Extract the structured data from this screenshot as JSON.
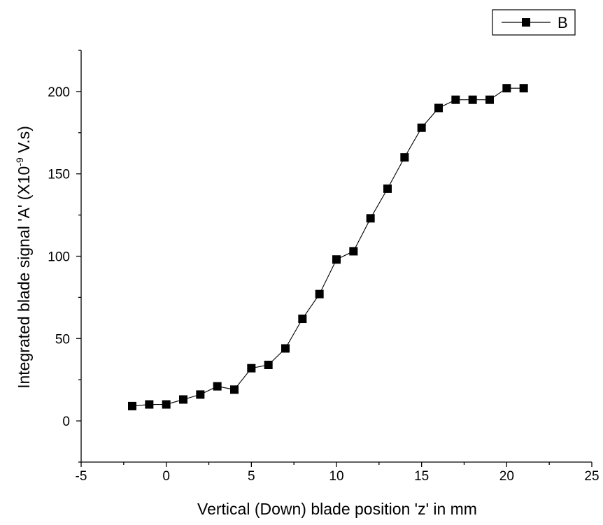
{
  "chart_data": {
    "type": "line",
    "xlabel": "Vertical (Down) blade position 'z' in mm",
    "ylabel_main": "Integrated blade signal 'A' (X10",
    "ylabel_exponent": "-9",
    "ylabel_tail": " V.s)",
    "xlim": [
      -5,
      25
    ],
    "ylim": [
      -25,
      225
    ],
    "xticks": [
      -5,
      0,
      5,
      10,
      15,
      20,
      25
    ],
    "yticks": [
      0,
      50,
      100,
      150,
      200
    ],
    "grid": false,
    "legend_position": "top-right",
    "marker": "square",
    "series": [
      {
        "name": "B",
        "color": "#000000",
        "x": [
          -2,
          -1,
          0,
          1,
          2,
          3,
          4,
          5,
          6,
          7,
          8,
          9,
          10,
          11,
          12,
          13,
          14,
          15,
          16,
          17,
          18,
          19,
          20,
          21
        ],
        "y": [
          9,
          10,
          10,
          13,
          16,
          21,
          19,
          32,
          34,
          44,
          62,
          77,
          98,
          103,
          123,
          141,
          160,
          178,
          190,
          195,
          195,
          195,
          202,
          202
        ]
      }
    ]
  }
}
